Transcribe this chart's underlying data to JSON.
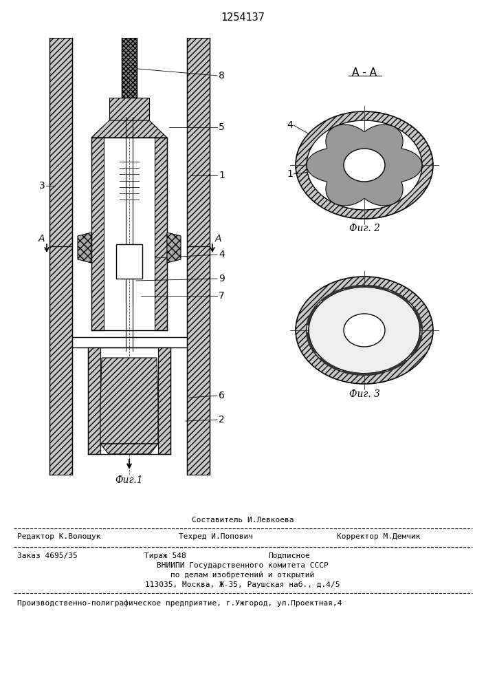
{
  "title": "1254137",
  "fig1_caption": "Фиг.1",
  "fig2_caption": "Фиг. 2",
  "fig3_caption": "Фиг. 3",
  "section_label": "A - A",
  "bg_color": "#ffffff",
  "line_color": "#1a1a1a",
  "footer_sestavitel": "Составитель И.Левкоева",
  "footer_redaktor": "Редактор К.Волощук",
  "footer_tehred": "Техред И.Попович",
  "footer_korrektor": "Корректор М.Демчик",
  "footer_zakaz": "Заказ 4695/35",
  "footer_tirazh": "Тираж 548",
  "footer_podpisnoe": "Подписное",
  "footer_vniipи": "ВНИИПИ Государственного комитета СССР",
  "footer_po_delam": "по делам изобретений и открытий",
  "footer_address": "113035, Москва, Ж-35, Раушская наб., д.4/5",
  "footer_proizvod": "Производственно-полиграфическое предприятие, г.Ужгород, ул.Проектная,4"
}
